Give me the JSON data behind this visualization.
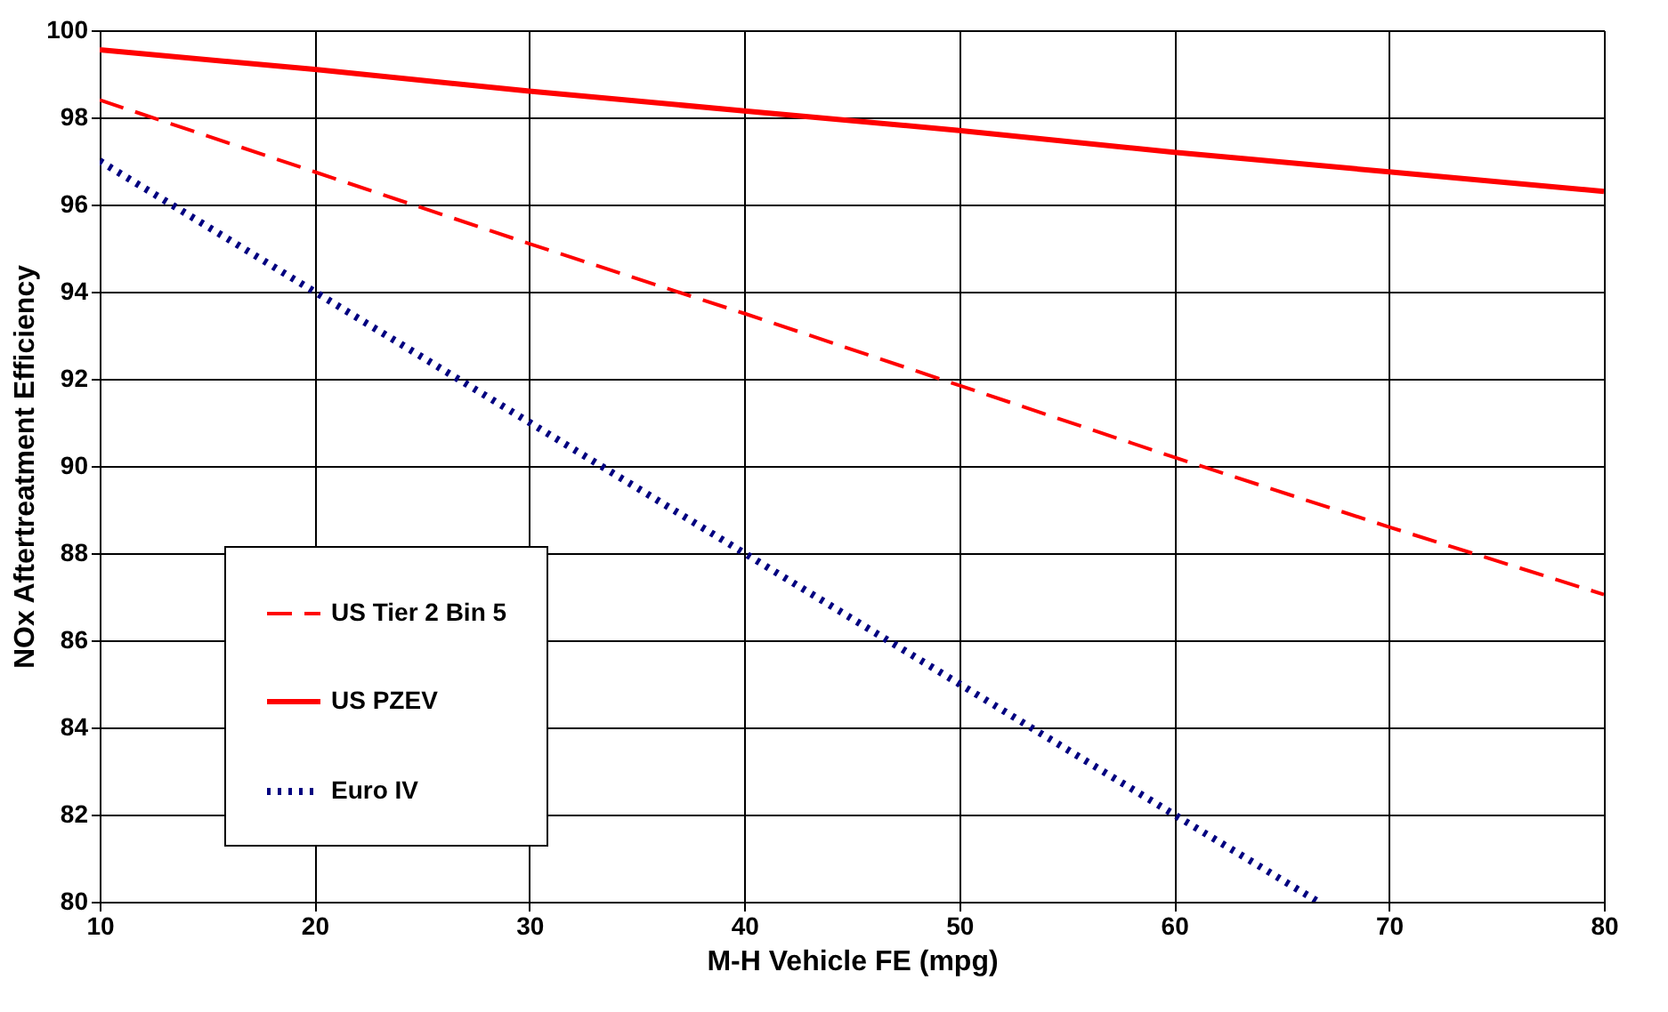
{
  "chart_data": {
    "type": "line",
    "xlabel": "M-H Vehicle FE (mpg)",
    "ylabel": "NOx Aftertreatment Efficiency",
    "xlim": [
      10,
      80
    ],
    "xticks": [
      10,
      20,
      30,
      40,
      50,
      60,
      70,
      80
    ],
    "ylim": [
      80,
      100
    ],
    "yticks": [
      80,
      82,
      84,
      86,
      88,
      90,
      92,
      94,
      96,
      98,
      100
    ],
    "grid": true,
    "legend": "bottom left",
    "marker": "none",
    "series": [
      {
        "name": "US Tier 2 Bin 5",
        "color": "#ff0000",
        "line_style": "dashed",
        "x": [
          10,
          20,
          30,
          40,
          50,
          60,
          70,
          80
        ],
        "values": [
          98.4,
          96.75,
          95.1,
          93.5,
          91.85,
          90.2,
          88.6,
          87.05
        ]
      },
      {
        "name": "US PZEV",
        "color": "#ff0000",
        "line_style": "solid",
        "x": [
          10,
          20,
          30,
          40,
          50,
          60,
          70,
          80
        ],
        "values": [
          99.55,
          99.1,
          98.6,
          98.15,
          97.7,
          97.2,
          96.75,
          96.3
        ]
      },
      {
        "name": "Euro IV",
        "color": "#000080",
        "line_style": "dotted",
        "x": [
          10,
          20,
          30,
          40,
          50,
          60,
          66.7
        ],
        "values": [
          97,
          94,
          91,
          88,
          85,
          82,
          80
        ]
      }
    ]
  }
}
